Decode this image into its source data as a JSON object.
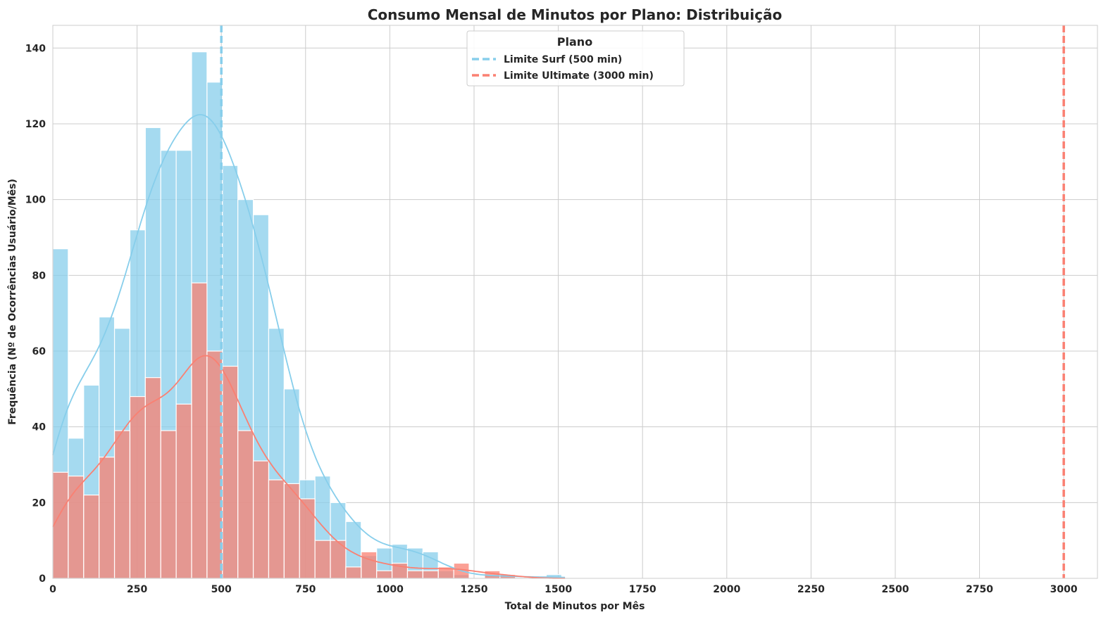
{
  "chart_data": {
    "type": "bar",
    "title": "Consumo Mensal de Minutos por Plano: Distribuição",
    "xlabel": "Total de Minutos por Mês",
    "ylabel": "Frequência (Nº de Ocorrências Usuário/Mês)",
    "xlim": [
      0,
      3100
    ],
    "ylim": [
      0,
      146
    ],
    "xticks": [
      0,
      250,
      500,
      750,
      1000,
      1250,
      1500,
      1750,
      2000,
      2250,
      2500,
      2750,
      3000
    ],
    "yticks": [
      0,
      20,
      40,
      60,
      80,
      100,
      120,
      140
    ],
    "grid": true,
    "bin_range": [
      0,
      1510
    ],
    "series": [
      {
        "color": "#87CEEB",
        "values": [
          87,
          37,
          51,
          69,
          66,
          92,
          119,
          113,
          113,
          139,
          131,
          109,
          100,
          96,
          66,
          50,
          26,
          27,
          20,
          15,
          6,
          8,
          9,
          8,
          7,
          2,
          1,
          0,
          1,
          1,
          0,
          0,
          1
        ]
      },
      {
        "color": "#FA8072",
        "values": [
          28,
          27,
          22,
          32,
          39,
          48,
          53,
          39,
          46,
          78,
          60,
          56,
          39,
          31,
          26,
          25,
          21,
          10,
          10,
          3,
          7,
          2,
          4,
          2,
          2,
          3,
          4,
          0,
          2,
          1,
          0,
          0,
          0
        ]
      }
    ],
    "kde": true,
    "reference_lines": [
      {
        "x": 500,
        "color": "#87CEEB",
        "style": "dashed"
      },
      {
        "x": 3000,
        "color": "#FA8072",
        "style": "dashed"
      }
    ],
    "legend": {
      "title": "Plano",
      "placement": "top-center",
      "entries": [
        {
          "label": "Limite Surf (500 min)",
          "color": "#87CEEB"
        },
        {
          "label": "Limite Ultimate (3000 min)",
          "color": "#FA8072"
        }
      ]
    }
  }
}
